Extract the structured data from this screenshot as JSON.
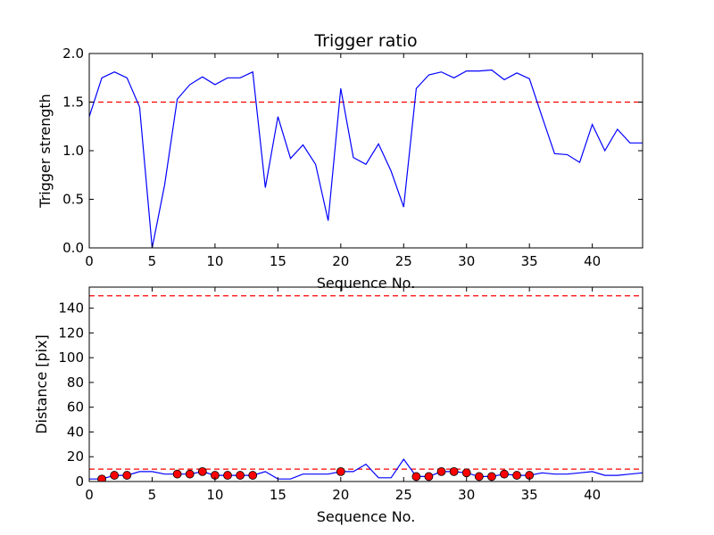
{
  "chart_data": [
    {
      "type": "line",
      "title": "Trigger ratio",
      "xlabel": "Sequence No.",
      "ylabel": "Trigger strength",
      "xlim": [
        0,
        44
      ],
      "ylim": [
        0,
        2.0
      ],
      "xticks": [
        0,
        5,
        10,
        15,
        20,
        25,
        30,
        35,
        40
      ],
      "xtick_labels": [
        "0",
        "5",
        "10",
        "15",
        "20",
        "25",
        "30",
        "35",
        "40"
      ],
      "yticks": [
        0.0,
        0.5,
        1.0,
        1.5,
        2.0
      ],
      "ytick_labels": [
        "0.0",
        "0.5",
        "1.0",
        "1.5",
        "2.0"
      ],
      "grid": false,
      "series": [
        {
          "color": "#0000ff",
          "x": [
            0,
            1,
            2,
            3,
            4,
            5,
            6,
            7,
            8,
            9,
            10,
            11,
            12,
            13,
            14,
            15,
            16,
            17,
            18,
            19,
            20,
            21,
            22,
            23,
            24,
            25,
            26,
            27,
            28,
            29,
            30,
            31,
            32,
            33,
            34,
            35,
            36,
            37,
            38,
            39,
            40,
            41,
            42,
            43,
            44
          ],
          "y": [
            1.35,
            1.75,
            1.81,
            1.75,
            1.45,
            0.0,
            0.65,
            1.53,
            1.68,
            1.76,
            1.68,
            1.75,
            1.75,
            1.81,
            0.62,
            1.35,
            0.92,
            1.06,
            0.86,
            0.28,
            1.64,
            0.93,
            0.86,
            1.07,
            0.79,
            0.42,
            1.64,
            1.78,
            1.81,
            1.75,
            1.82,
            1.82,
            1.83,
            1.73,
            1.8,
            1.74,
            1.35,
            0.97,
            0.96,
            0.88,
            1.27,
            1.0,
            1.22,
            1.08,
            1.08
          ]
        }
      ],
      "hlines": [
        {
          "y": 1.5,
          "color": "#ff0000",
          "style": "dashed"
        }
      ]
    },
    {
      "type": "line",
      "xlabel": "Sequence No.",
      "ylabel": "Distance [pix]",
      "xlim": [
        0,
        44
      ],
      "ylim": [
        0,
        157
      ],
      "xticks": [
        0,
        5,
        10,
        15,
        20,
        25,
        30,
        35,
        40
      ],
      "xtick_labels": [
        "0",
        "5",
        "10",
        "15",
        "20",
        "25",
        "30",
        "35",
        "40"
      ],
      "yticks": [
        0,
        20,
        40,
        60,
        80,
        100,
        120,
        140
      ],
      "ytick_labels": [
        "0",
        "20",
        "40",
        "60",
        "80",
        "100",
        "120",
        "140"
      ],
      "grid": false,
      "series": [
        {
          "color": "#0000ff",
          "x": [
            0,
            1,
            2,
            3,
            4,
            5,
            6,
            7,
            8,
            9,
            10,
            11,
            12,
            13,
            14,
            15,
            16,
            17,
            18,
            19,
            20,
            21,
            22,
            23,
            24,
            25,
            26,
            27,
            28,
            29,
            30,
            31,
            32,
            33,
            34,
            35,
            36,
            37,
            38,
            39,
            40,
            41,
            42,
            43,
            44
          ],
          "y": [
            2,
            2,
            5,
            5,
            8,
            8,
            6,
            6,
            6,
            8,
            5,
            5,
            5,
            5,
            8,
            2,
            2,
            6,
            6,
            6,
            8,
            8,
            14,
            3,
            3,
            18,
            4,
            4,
            8,
            8,
            7,
            4,
            4,
            6,
            5,
            5,
            7,
            6,
            6,
            7,
            8,
            5,
            5,
            6,
            7
          ]
        },
        {
          "type": "scatter",
          "color": "#ff0000",
          "marker": "circle",
          "x": [
            1,
            2,
            3,
            7,
            8,
            9,
            10,
            11,
            12,
            13,
            20,
            26,
            27,
            28,
            29,
            30,
            31,
            32,
            33,
            34,
            35
          ],
          "y": [
            2,
            5,
            5,
            6,
            6,
            8,
            5,
            5,
            5,
            5,
            8,
            4,
            4,
            8,
            8,
            7,
            4,
            4,
            6,
            5,
            5
          ]
        }
      ],
      "hlines": [
        {
          "y": 150,
          "color": "#ff0000",
          "style": "dashed"
        },
        {
          "y": 10,
          "color": "#ff0000",
          "style": "dashed"
        }
      ]
    }
  ]
}
